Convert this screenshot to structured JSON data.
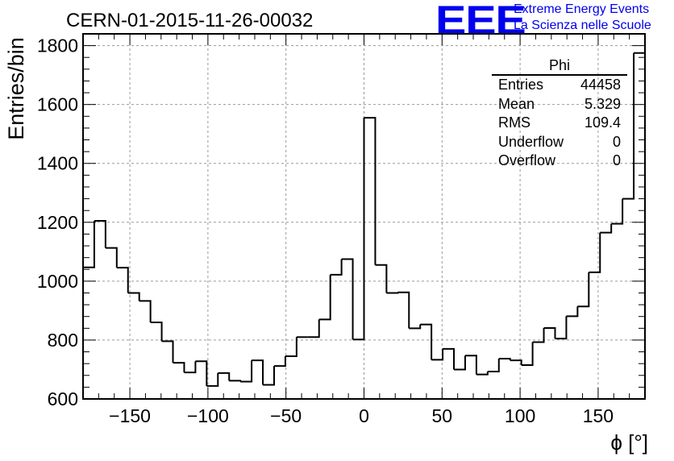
{
  "chart_data": {
    "type": "histogram",
    "title": "CERN-01-2015-11-26-00032",
    "xlabel": "ϕ [°]",
    "ylabel": "Entries/bin",
    "xlim": [
      -180,
      180
    ],
    "ylim": [
      600,
      1840
    ],
    "x_ticks": [
      -150,
      -100,
      -50,
      0,
      50,
      100,
      150
    ],
    "y_ticks": [
      600,
      800,
      1000,
      1200,
      1400,
      1600,
      1800
    ],
    "grid": true,
    "bin_width": 7.2,
    "values": [
      1047,
      1205,
      1113,
      1046,
      960,
      933,
      860,
      796,
      723,
      690,
      728,
      644,
      688,
      662,
      659,
      731,
      648,
      712,
      745,
      810,
      810,
      870,
      1022,
      1075,
      802,
      1555,
      1055,
      960,
      962,
      840,
      853,
      733,
      770,
      700,
      747,
      683,
      693,
      737,
      731,
      715,
      793,
      841,
      805,
      881,
      914,
      1030,
      1165,
      1195,
      1280,
      1775
    ],
    "stats_box": {
      "title": "Phi",
      "rows": [
        {
          "label": "Entries",
          "value": "44458"
        },
        {
          "label": "Mean",
          "value": "5.329"
        },
        {
          "label": "RMS",
          "value": "109.4"
        },
        {
          "label": "Underflow",
          "value": "0"
        },
        {
          "label": "Overflow",
          "value": "0"
        }
      ]
    }
  },
  "logo": {
    "mark": "EEE",
    "line1": "Extreme Energy Events",
    "line2": "La Scienza nelle Scuole",
    "color": "#0000ee"
  }
}
